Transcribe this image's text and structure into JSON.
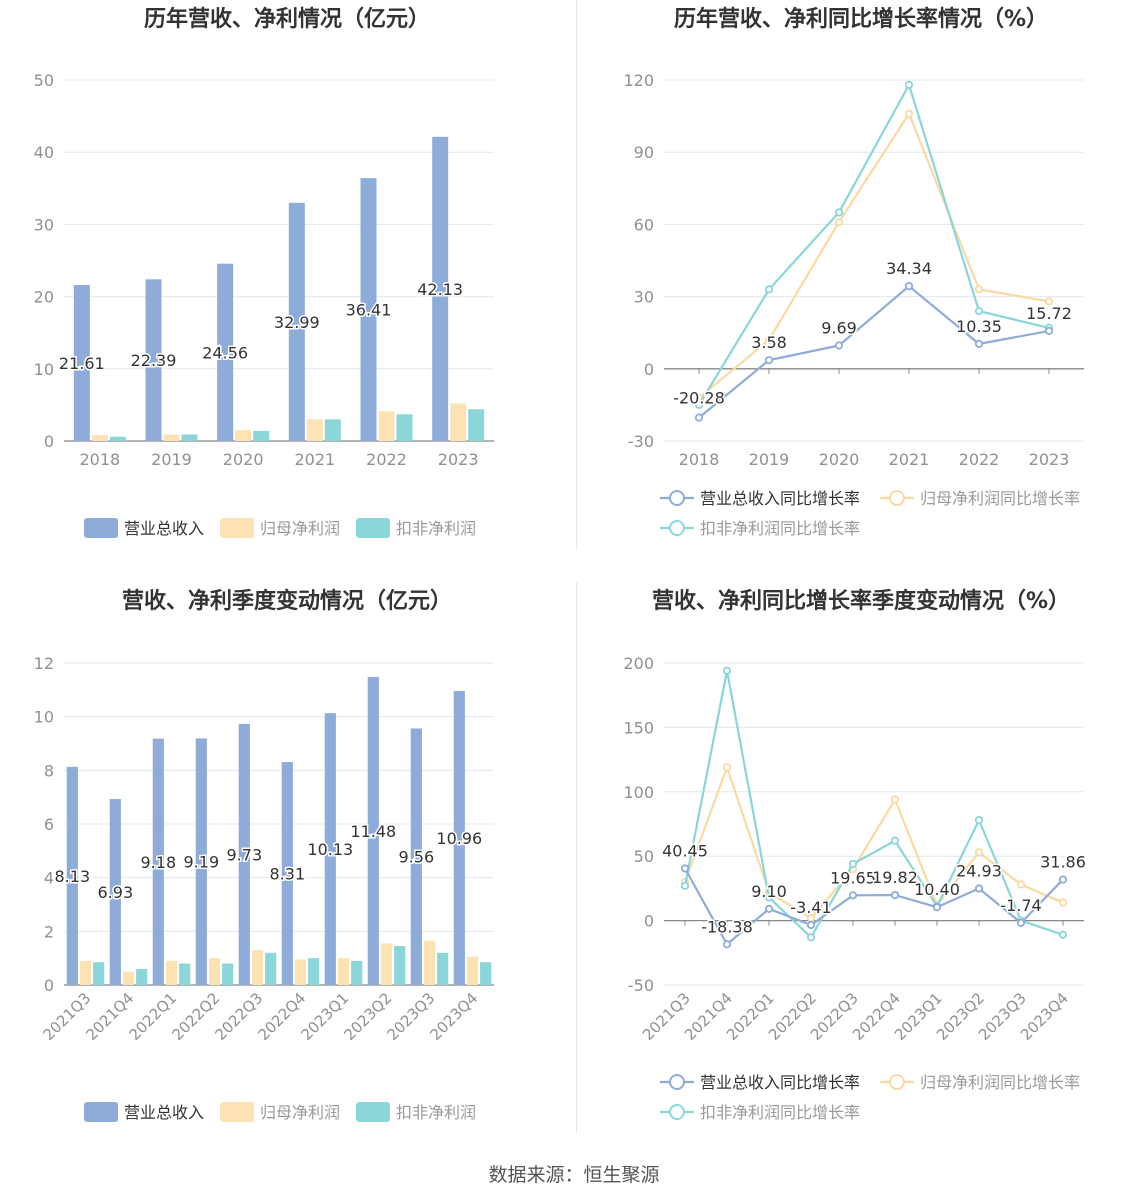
{
  "colors": {
    "revenue": "#8eacd9",
    "net_profit": "#fde3b4",
    "deducted_profit": "#8ad6d9",
    "grid": "#e3e7f0",
    "axis": "#909090",
    "title": "#333333"
  },
  "legend_labels": {
    "bar": [
      "营业总收入",
      "归母净利润",
      "扣非净利润"
    ],
    "line": [
      "营业总收入同比增长率",
      "归母净利润同比增长率",
      "扣非净利润同比增长率"
    ]
  },
  "source_text": "数据来源：恒生聚源",
  "chart_data": [
    {
      "type": "bar",
      "title": "历年营收、净利情况（亿元）",
      "categories": [
        "2018",
        "2019",
        "2020",
        "2021",
        "2022",
        "2023"
      ],
      "ylim": [
        0,
        50
      ],
      "yticks": [
        0,
        10,
        20,
        30,
        40,
        50
      ],
      "legend_position": "bottom",
      "series": [
        {
          "name": "营业总收入",
          "values": [
            21.61,
            22.39,
            24.56,
            32.99,
            36.41,
            42.13
          ],
          "labels": true
        },
        {
          "name": "归母净利润",
          "values": [
            0.8,
            0.9,
            1.5,
            3.0,
            4.1,
            5.2
          ]
        },
        {
          "name": "扣非净利润",
          "values": [
            0.6,
            0.9,
            1.4,
            3.0,
            3.7,
            4.4
          ]
        }
      ]
    },
    {
      "type": "line",
      "title": "历年营收、净利同比增长率情况（%）",
      "categories": [
        "2018",
        "2019",
        "2020",
        "2021",
        "2022",
        "2023"
      ],
      "ylim": [
        -30,
        120
      ],
      "yticks": [
        -30,
        0,
        30,
        60,
        90,
        120
      ],
      "legend_position": "bottom",
      "series": [
        {
          "name": "营业总收入同比增长率",
          "values": [
            -20.28,
            3.58,
            9.69,
            34.34,
            10.35,
            15.72
          ],
          "labels": true
        },
        {
          "name": "归母净利润同比增长率",
          "values": [
            -12,
            12,
            61,
            106,
            33,
            28
          ]
        },
        {
          "name": "扣非净利润同比增长率",
          "values": [
            -15,
            33,
            65,
            118,
            24,
            17
          ]
        }
      ]
    },
    {
      "type": "bar",
      "title": "营收、净利季度变动情况（亿元）",
      "categories": [
        "2021Q3",
        "2021Q4",
        "2022Q1",
        "2022Q2",
        "2022Q3",
        "2022Q4",
        "2023Q1",
        "2023Q2",
        "2023Q3",
        "2023Q4"
      ],
      "ylim": [
        0,
        12
      ],
      "yticks": [
        0,
        2,
        4,
        6,
        8,
        10,
        12
      ],
      "legend_position": "bottom",
      "series": [
        {
          "name": "营业总收入",
          "values": [
            8.13,
            6.93,
            9.18,
            9.19,
            9.73,
            8.31,
            10.13,
            11.48,
            9.56,
            10.96
          ],
          "labels": true
        },
        {
          "name": "归母净利润",
          "values": [
            0.9,
            0.5,
            0.9,
            1.0,
            1.3,
            0.95,
            1.0,
            1.55,
            1.65,
            1.05
          ]
        },
        {
          "name": "扣非净利润",
          "values": [
            0.85,
            0.6,
            0.8,
            0.8,
            1.2,
            1.0,
            0.9,
            1.45,
            1.2,
            0.85
          ]
        }
      ]
    },
    {
      "type": "line",
      "title": "营收、净利同比增长率季度变动情况（%）",
      "categories": [
        "2021Q3",
        "2021Q4",
        "2022Q1",
        "2022Q2",
        "2022Q3",
        "2022Q4",
        "2023Q1",
        "2023Q2",
        "2023Q3",
        "2023Q4"
      ],
      "ylim": [
        -50,
        200
      ],
      "yticks": [
        -50,
        0,
        50,
        100,
        150,
        200
      ],
      "legend_position": "bottom",
      "series": [
        {
          "name": "营业总收入同比增长率",
          "values": [
            40.45,
            -18.38,
            9.1,
            -3.41,
            19.65,
            19.82,
            10.4,
            24.93,
            -1.74,
            31.86
          ],
          "labels": true
        },
        {
          "name": "归母净利润同比增长率",
          "values": [
            30,
            119,
            22,
            2,
            40,
            94,
            12,
            53,
            28,
            14
          ]
        },
        {
          "name": "扣非净利润同比增长率",
          "values": [
            27,
            194,
            18,
            -13,
            44,
            62,
            11,
            78,
            0,
            -11
          ]
        }
      ]
    }
  ]
}
